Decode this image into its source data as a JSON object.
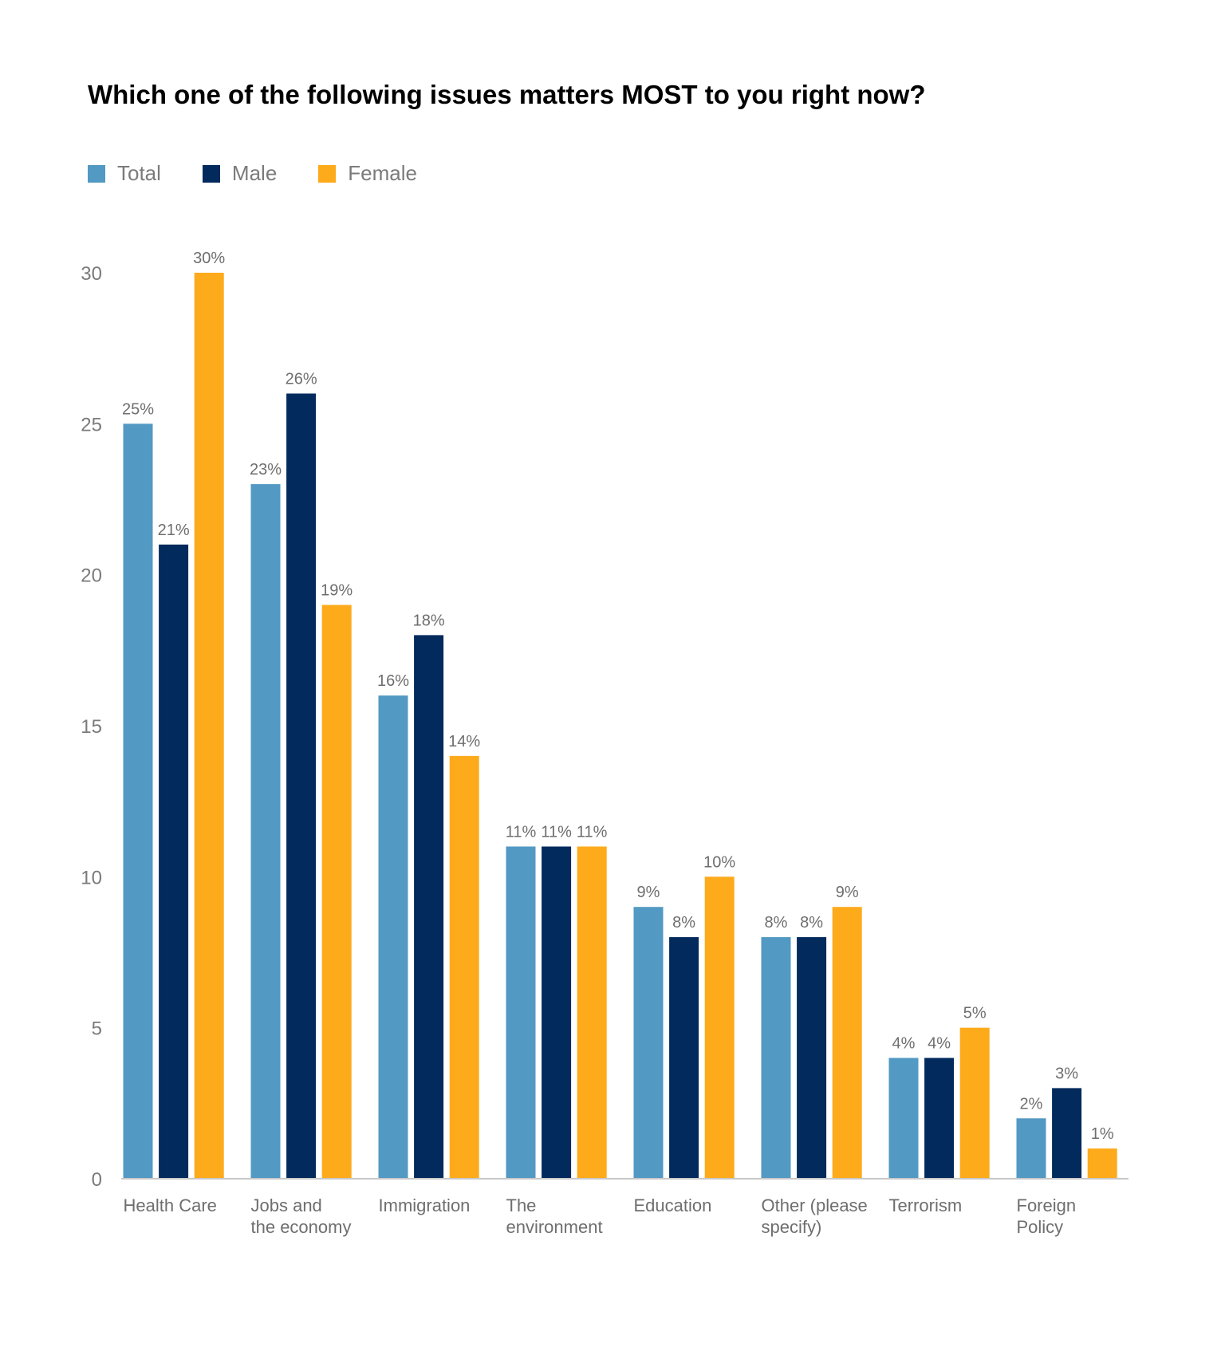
{
  "chart_data": {
    "type": "bar",
    "title": "Which one of the following issues matters MOST to you right now?",
    "xlabel": "",
    "ylabel": "",
    "ylim": [
      0,
      30
    ],
    "yticks": [
      "0",
      "5",
      "10",
      "15",
      "20",
      "25",
      "30"
    ],
    "grid": false,
    "legend_position": "top-left",
    "categories": [
      [
        "Health Care"
      ],
      [
        "Jobs and",
        "the economy"
      ],
      [
        "Immigration"
      ],
      [
        "The",
        "environment"
      ],
      [
        "Education"
      ],
      [
        "Other (please",
        "specify)"
      ],
      [
        "Terrorism"
      ],
      [
        "Foreign",
        "Policy"
      ]
    ],
    "series": [
      {
        "name": "Total",
        "color": "#5299c3",
        "values": [
          25,
          23,
          16,
          11,
          9,
          8,
          4,
          2
        ],
        "labels": [
          "25%",
          "23%",
          "16%",
          "11%",
          "9%",
          "8%",
          "4%",
          "2%"
        ]
      },
      {
        "name": "Male",
        "color": "#022a5c",
        "values": [
          21,
          26,
          18,
          11,
          8,
          8,
          4,
          3
        ],
        "labels": [
          "21%",
          "26%",
          "18%",
          "11%",
          "8%",
          "8%",
          "4%",
          "3%"
        ]
      },
      {
        "name": "Female",
        "color": "#fdaa1b",
        "values": [
          30,
          19,
          14,
          11,
          10,
          9,
          5,
          1
        ],
        "labels": [
          "30%",
          "19%",
          "14%",
          "11%",
          "10%",
          "9%",
          "5%",
          "1%"
        ]
      }
    ]
  }
}
